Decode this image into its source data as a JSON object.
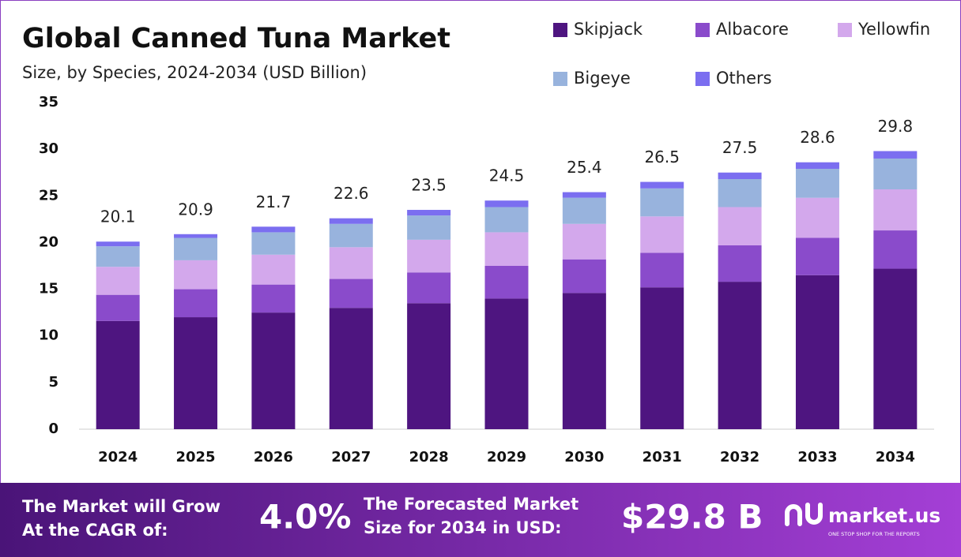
{
  "chart_data": {
    "type": "stacked_bar",
    "title": "Global Canned Tuna Market",
    "subtitle": "Size, by Species, 2024-2034 (USD Billion)",
    "categories": [
      "2024",
      "2025",
      "2026",
      "2027",
      "2028",
      "2029",
      "2030",
      "2031",
      "2032",
      "2033",
      "2034"
    ],
    "series": [
      {
        "name": "Skipjack",
        "color": "#4e1580",
        "values": [
          11.6,
          12.0,
          12.5,
          13.0,
          13.5,
          14.0,
          14.6,
          15.2,
          15.8,
          16.5,
          17.2
        ]
      },
      {
        "name": "Albacore",
        "color": "#8a4bcb",
        "values": [
          2.8,
          3.0,
          3.0,
          3.1,
          3.3,
          3.5,
          3.6,
          3.7,
          3.9,
          4.0,
          4.1
        ]
      },
      {
        "name": "Yellowfin",
        "color": "#d3a8ec",
        "values": [
          3.0,
          3.1,
          3.2,
          3.4,
          3.5,
          3.6,
          3.8,
          3.9,
          4.1,
          4.3,
          4.4
        ]
      },
      {
        "name": "Bigeye",
        "color": "#98b3dd",
        "values": [
          2.2,
          2.4,
          2.4,
          2.5,
          2.6,
          2.7,
          2.8,
          3.0,
          3.0,
          3.1,
          3.3
        ]
      },
      {
        "name": "Others",
        "color": "#7b6ef0",
        "values": [
          0.5,
          0.4,
          0.6,
          0.6,
          0.6,
          0.7,
          0.6,
          0.7,
          0.7,
          0.7,
          0.8
        ]
      }
    ],
    "totals": [
      20.1,
      20.9,
      21.7,
      22.6,
      23.5,
      24.5,
      25.4,
      26.5,
      27.5,
      28.6,
      29.8
    ],
    "ylim": [
      0,
      35
    ],
    "yticks": [
      0,
      5,
      10,
      15,
      20,
      25,
      30,
      35
    ],
    "grid": false,
    "legend": "top-right"
  },
  "footer": {
    "cagr_label": [
      "The Market will Grow",
      "At the CAGR of:"
    ],
    "cagr_value": "4.0%",
    "size_label": [
      "The Forecasted Market",
      "Size for 2034 in USD:"
    ],
    "size_value": "$29.8 B",
    "brand": "market.us",
    "tagline": "ONE STOP SHOP FOR THE REPORTS"
  }
}
